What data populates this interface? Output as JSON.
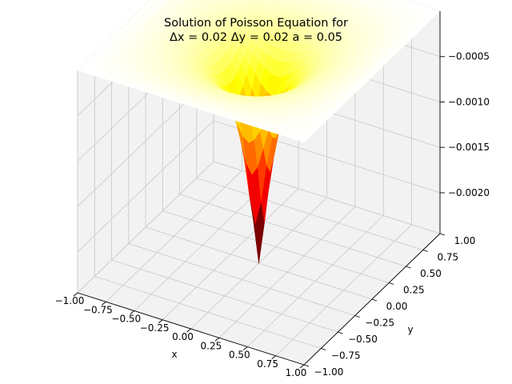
{
  "chart_data": {
    "type": "surface3d",
    "title_line1": "Solution of Poisson Equation for",
    "title_line2": "Δx = 0.02  Δy = 0.02  a = 0.05",
    "xlabel": "x",
    "ylabel": "y",
    "zlabel": "",
    "xlim": [
      -1.0,
      1.0
    ],
    "ylim": [
      -1.0,
      1.0
    ],
    "zlim": [
      -0.00245,
      0.0
    ],
    "x_ticks": [
      "−1.00",
      "−0.75",
      "−0.50",
      "−0.25",
      "0.00",
      "0.25",
      "0.50",
      "0.75",
      "1.00"
    ],
    "y_ticks": [
      "−1.00",
      "−0.75",
      "−0.50",
      "−0.25",
      "0.00",
      "0.25",
      "0.50",
      "0.75",
      "1.00"
    ],
    "z_ticks": [
      "−0.0020",
      "−0.0015",
      "−0.0010",
      "−0.0005"
    ],
    "x_tick_values": [
      -1.0,
      -0.75,
      -0.5,
      -0.25,
      0.0,
      0.25,
      0.5,
      0.75,
      1.0
    ],
    "y_tick_values": [
      -1.0,
      -0.75,
      -0.5,
      -0.25,
      0.0,
      0.25,
      0.5,
      0.75,
      1.0
    ],
    "z_tick_values": [
      -0.002,
      -0.0015,
      -0.001,
      -0.0005
    ],
    "colormap": "hot",
    "surface_minimum": {
      "x": 0.0,
      "y": 0.0,
      "z": -0.00245
    },
    "surface_boundary_value": 0.0,
    "grid": true,
    "colors": {
      "pane": "#f2f2f2",
      "grid": "#c8c8c8",
      "background": "#ffffff"
    }
  }
}
